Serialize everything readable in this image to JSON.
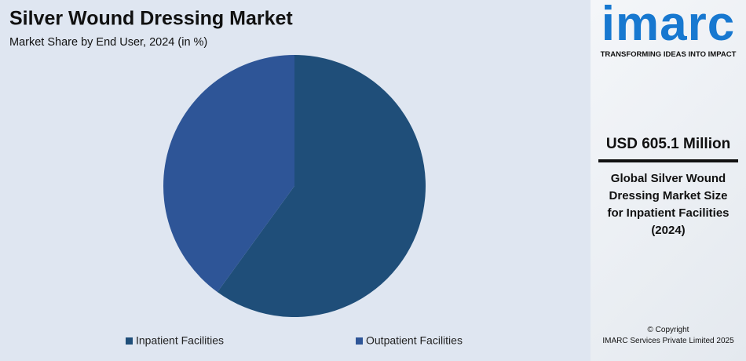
{
  "chart_data": {
    "type": "pie",
    "title": "Silver Wound Dressing Market",
    "subtitle": "Market Share by End User, 2024 (in %)",
    "categories": [
      "Inpatient Facilities",
      "Outpatient Facilities"
    ],
    "values": [
      60,
      40
    ],
    "colors": [
      "#1f4e79",
      "#2e5597"
    ]
  },
  "sidebar": {
    "logo": "imarc",
    "tagline": "TRANSFORMING IDEAS INTO IMPACT",
    "headline": "USD 605.1 Million",
    "description": "Global Silver Wound Dressing Market Size for Inpatient Facilities (2024)",
    "copyright": [
      "© Copyright",
      "IMARC Services Private Limited 2025"
    ]
  }
}
